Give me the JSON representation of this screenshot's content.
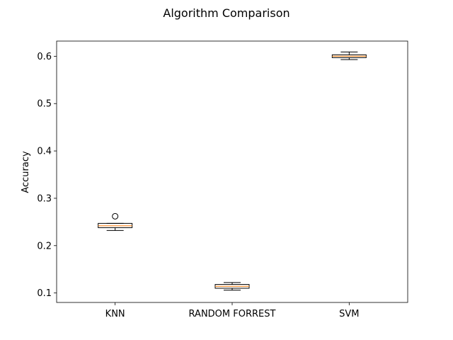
{
  "chart_data": {
    "type": "box",
    "title": "Algorithm Comparison",
    "xlabel": "",
    "ylabel": "Accuracy",
    "ylim": [
      0.08,
      0.632
    ],
    "yticks": [
      0.1,
      0.2,
      0.3,
      0.4,
      0.5,
      0.6
    ],
    "ytick_labels": [
      "0.1",
      "0.2",
      "0.3",
      "0.4",
      "0.5",
      "0.6"
    ],
    "categories": [
      "KNN",
      "RANDOM FORREST",
      "SVM"
    ],
    "boxes": [
      {
        "name": "KNN",
        "whisker_low": 0.232,
        "q1": 0.238,
        "median": 0.242,
        "q3": 0.247,
        "whisker_high": 0.247,
        "outliers": [
          0.262
        ]
      },
      {
        "name": "RANDOM FORREST",
        "whisker_low": 0.106,
        "q1": 0.11,
        "median": 0.114,
        "q3": 0.118,
        "whisker_high": 0.122,
        "outliers": []
      },
      {
        "name": "SVM",
        "whisker_low": 0.593,
        "q1": 0.597,
        "median": 0.6,
        "q3": 0.603,
        "whisker_high": 0.609,
        "outliers": []
      }
    ],
    "colors": {
      "box": "#000000",
      "median": "#ff7f0e",
      "outlier": "#000000"
    },
    "grid": false,
    "legend": "none"
  }
}
